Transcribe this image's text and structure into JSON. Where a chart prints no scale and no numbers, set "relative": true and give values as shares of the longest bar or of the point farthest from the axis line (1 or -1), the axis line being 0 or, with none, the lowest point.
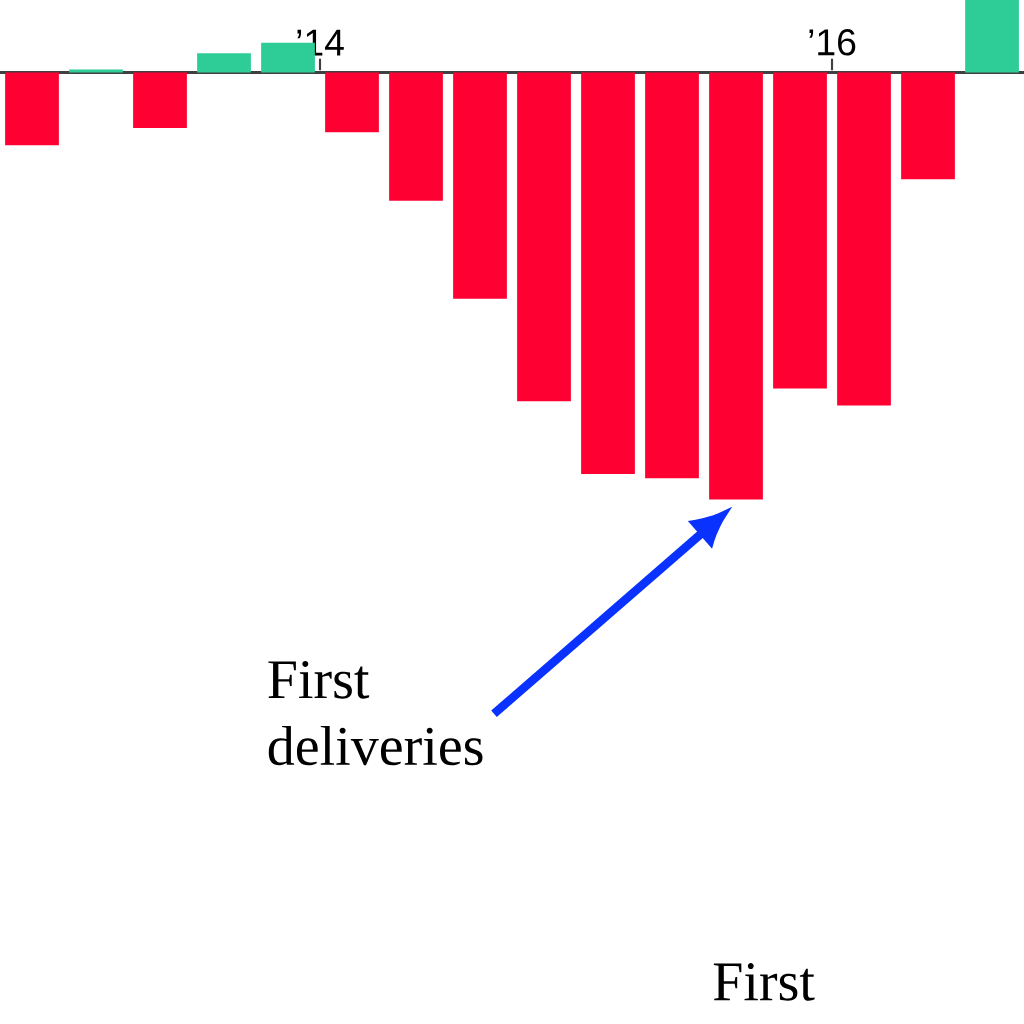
{
  "chart_data": {
    "type": "bar",
    "relative": true,
    "x": [
      2012.875,
      2013.125,
      2013.375,
      2013.625,
      2013.875,
      2014.125,
      2014.375,
      2014.625,
      2014.875,
      2015.125,
      2015.375,
      2015.625,
      2015.875,
      2016.125,
      2016.375,
      2016.625
    ],
    "values": [
      -0.17,
      0.007,
      -0.13,
      0.045,
      0.07,
      -0.14,
      -0.3,
      -0.53,
      -0.77,
      -0.94,
      -0.95,
      -1,
      -0.74,
      -0.78,
      -0.25,
      0.17
    ],
    "colors": [
      "#ff0033",
      "#2ecc96",
      "#ff0033",
      "#2ecc96",
      "#2ecc96",
      "#ff0033",
      "#ff0033",
      "#ff0033",
      "#ff0033",
      "#ff0033",
      "#ff0033",
      "#ff0033",
      "#ff0033",
      "#ff0033",
      "#ff0033",
      "#2ecc96"
    ],
    "xlim": [
      2012.75,
      2016.75
    ],
    "xticks": [
      {
        "value": 2014,
        "label": "’14"
      },
      {
        "value": 2016,
        "label": "’16"
      }
    ],
    "annotations": [
      "First deliveries",
      "First"
    ]
  }
}
